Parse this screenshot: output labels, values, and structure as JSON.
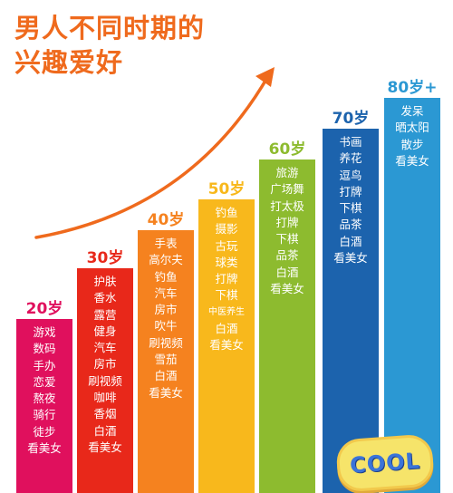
{
  "title": {
    "line1": "男人不同时期的",
    "line2": "兴趣爱好"
  },
  "colors": {
    "title": "#ef6a1d",
    "arrow": "#ef6a1d",
    "age20": "#e0105d",
    "age30": "#e8281a",
    "age40": "#f5821f",
    "age50": "#f8b81c",
    "age60": "#8dbb2f",
    "age70": "#1c63ad",
    "age80": "#2b98d3"
  },
  "groups": [
    {
      "age": "20岁",
      "items": [
        "游戏",
        "数码",
        "手办",
        "恋爱",
        "熬夜",
        "骑行",
        "徒步",
        "看美女"
      ]
    },
    {
      "age": "30岁",
      "items": [
        "护肤",
        "香水",
        "露营",
        "健身",
        "汽车",
        "房市",
        "刷视频",
        "咖啡",
        "香烟",
        "白酒",
        "看美女"
      ]
    },
    {
      "age": "40岁",
      "items": [
        "手表",
        "高尔夫",
        "钓鱼",
        "汽车",
        "房市",
        "吹牛",
        "刷视频",
        "雪茄",
        "白酒",
        "看美女"
      ]
    },
    {
      "age": "50岁",
      "items": [
        "钓鱼",
        "摄影",
        "古玩",
        "球类",
        "打牌",
        "下棋",
        "中医养生",
        "白酒",
        "看美女"
      ]
    },
    {
      "age": "60岁",
      "items": [
        "旅游",
        "广场舞",
        "打太极",
        "打牌",
        "下棋",
        "品茶",
        "白酒",
        "看美女"
      ]
    },
    {
      "age": "70岁",
      "items": [
        "书画",
        "养花",
        "逗鸟",
        "打牌",
        "下棋",
        "品茶",
        "白酒",
        "看美女"
      ]
    },
    {
      "age": "80岁+",
      "items": [
        "发呆",
        "晒太阳",
        "散步",
        "看美女"
      ]
    }
  ],
  "sticker": {
    "text": "COOL"
  }
}
